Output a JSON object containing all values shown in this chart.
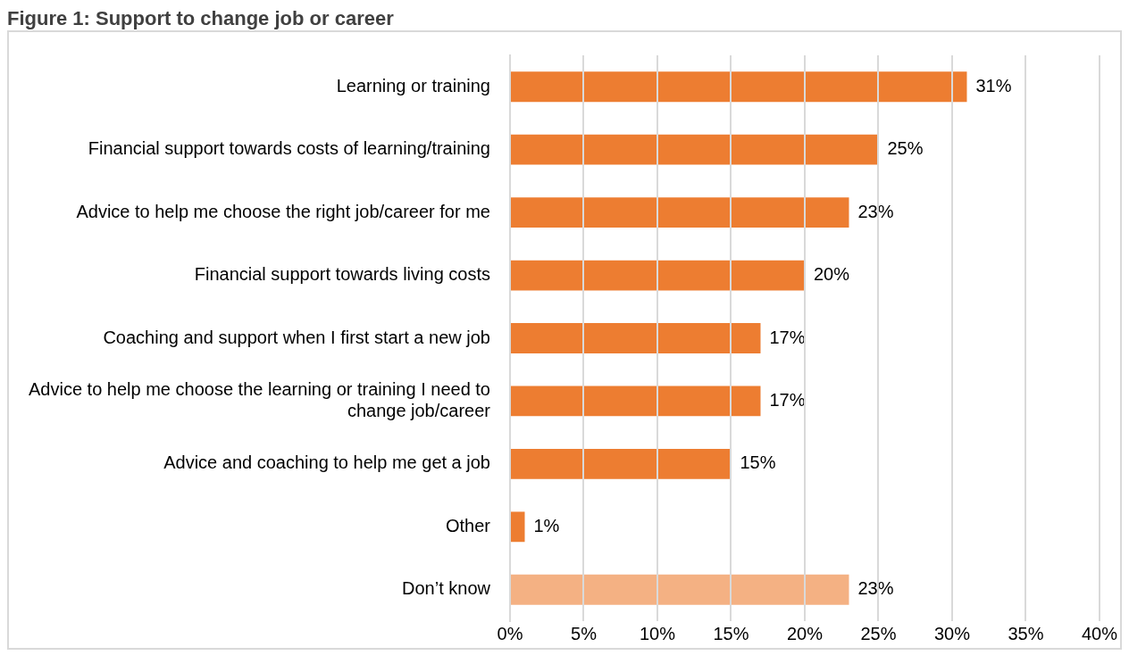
{
  "chart_data": {
    "type": "bar",
    "orientation": "horizontal",
    "title": "Figure 1: Support to change job or career",
    "categories": [
      "Learning or training",
      "Financial support towards costs of learning/training",
      "Advice to help me choose the right job/career for me",
      "Financial support towards living costs",
      "Coaching and support when I first start a new job",
      "Advice to help me choose the learning or training I need to change job/career",
      "Advice and coaching to help me get a job",
      "Other",
      "Don’t know"
    ],
    "values": [
      31,
      25,
      23,
      20,
      17,
      17,
      15,
      1,
      23
    ],
    "colors": [
      "#ed7d31",
      "#ed7d31",
      "#ed7d31",
      "#ed7d31",
      "#ed7d31",
      "#ed7d31",
      "#ed7d31",
      "#ed7d31",
      "#f4b183"
    ],
    "value_labels": [
      "31%",
      "25%",
      "23%",
      "20%",
      "17%",
      "17%",
      "15%",
      "1%",
      "23%"
    ],
    "xlim": [
      0,
      40
    ],
    "xticks": [
      {
        "value": 0,
        "label": "0%"
      },
      {
        "value": 5,
        "label": "5%"
      },
      {
        "value": 10,
        "label": "10%"
      },
      {
        "value": 15,
        "label": "15%"
      },
      {
        "value": 20,
        "label": "20%"
      },
      {
        "value": 25,
        "label": "25%"
      },
      {
        "value": 30,
        "label": "30%"
      },
      {
        "value": 35,
        "label": "35%"
      },
      {
        "value": 40,
        "label": "40%"
      }
    ],
    "grid": "x",
    "legend": false
  }
}
